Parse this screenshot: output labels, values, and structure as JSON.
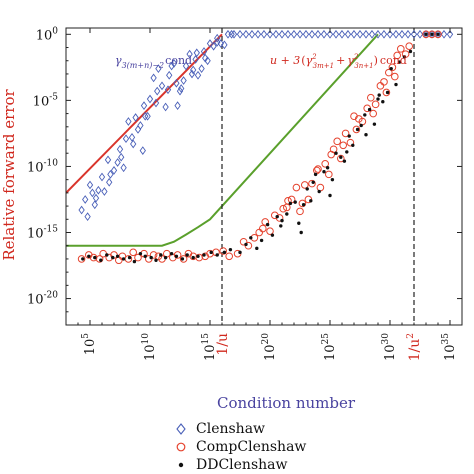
{
  "chart_data": {
    "type": "scatter",
    "xlabel": "Condition number",
    "ylabel": "Relative forward error",
    "xscale": "log",
    "yscale": "log",
    "xlim": [
      1000.0,
      1e+36
    ],
    "ylim": [
      1e-22,
      3
    ],
    "y_ticks": [
      1,
      1e-05,
      1e-10,
      1e-15,
      1e-20
    ],
    "y_tick_labels": [
      {
        "base": "10",
        "exp": "0"
      },
      {
        "base": "10",
        "exp": "-5"
      },
      {
        "base": "10",
        "exp": "-10"
      },
      {
        "base": "10",
        "exp": "-15"
      },
      {
        "base": "10",
        "exp": "-20"
      }
    ],
    "x_ticks": [
      100000.0,
      10000000000.0,
      1000000000000000.0,
      1e+20,
      1e+25,
      1e+30,
      1e+35
    ],
    "x_tick_labels": [
      {
        "base": "10",
        "exp": "5"
      },
      {
        "base": "10",
        "exp": "10"
      },
      {
        "base": "10",
        "exp": "15"
      },
      {
        "base": "10",
        "exp": "20"
      },
      {
        "base": "10",
        "exp": "25"
      },
      {
        "base": "10",
        "exp": "30"
      },
      {
        "base": "10",
        "exp": "35"
      }
    ],
    "special_ticks": [
      {
        "x": 1e+16,
        "label": "1/u",
        "color": "#d0281e"
      },
      {
        "x": 1e+32,
        "label": "1/u",
        "sup": "2",
        "color": "#d0281e"
      }
    ],
    "vlines": [
      1e+16,
      1e+32
    ],
    "bound_lines": [
      {
        "name": "γ3(m+n)−2 cond",
        "color": "#d9342b",
        "points": [
          [
            1000.0,
            1e-12
          ],
          [
            1e+16,
            1
          ]
        ]
      },
      {
        "name": "u + 3(γ²3m+1 + γ²3n+1) cond",
        "color": "#5aa02c",
        "points": [
          [
            1000.0,
            1e-16
          ],
          [
            100000000000.0,
            1e-16
          ],
          [
            1000000000000.0,
            2e-16
          ],
          [
            10000000000000.0,
            7e-16
          ],
          [
            100000000000000.0,
            2.5e-15
          ],
          [
            1000000000000000.0,
            1e-14
          ],
          [
            1e+29,
            1
          ]
        ]
      }
    ],
    "annotations": [
      {
        "text": "γ",
        "sub": "3(m+n)−2",
        "after": "cond",
        "color": "#4a44a0"
      },
      {
        "text": "u + 3",
        "color": "#d0281e"
      }
    ],
    "legend_position": "bottom",
    "series": [
      {
        "name": "Clenshaw",
        "marker": "diamond",
        "color": "#4a60b8",
        "x": [
          4.3,
          4.6,
          4.8,
          5.0,
          5.2,
          5.5,
          5.7,
          6.0,
          6.2,
          6.5,
          6.7,
          7.0,
          7.3,
          7.5,
          7.8,
          8.0,
          8.2,
          8.5,
          8.8,
          9.0,
          9.2,
          9.5,
          9.8,
          10.0,
          10.3,
          10.5,
          10.7,
          11.0,
          11.3,
          11.5,
          11.8,
          12.0,
          12.3,
          12.5,
          12.8,
          13.0,
          13.3,
          13.5,
          13.8,
          14.0,
          14.3,
          14.5,
          14.8,
          15.0,
          15.3,
          15.6,
          15.9,
          16.2,
          16.5,
          16.8,
          17.0,
          17.5,
          18.0,
          18.5,
          19.0,
          19.5,
          20.0,
          20.5,
          21.0,
          21.5,
          22.0,
          22.5,
          23.0,
          23.5,
          24.0,
          24.5,
          25.0,
          25.5,
          26.0,
          26.5,
          27.0,
          27.5,
          28.0,
          28.5,
          29.0,
          29.5,
          30.0,
          30.5,
          31.0,
          31.5,
          32.0,
          32.5,
          33.0,
          33.5,
          34.0,
          34.5,
          35.0,
          5.4,
          6.6,
          7.6,
          8.6,
          9.6,
          10.6,
          11.6,
          12.6,
          13.6,
          14.6,
          15.6,
          9.4,
          12.2,
          13.9
        ],
        "y": [
          -13.3,
          -12.5,
          -13.8,
          -11.4,
          -12.0,
          -12.4,
          -11.8,
          -10.8,
          -11.9,
          -9.5,
          -10.6,
          -10.3,
          -9.7,
          -8.7,
          -10.1,
          -7.9,
          -6.6,
          -7.8,
          -6.3,
          -7.2,
          -6.9,
          -5.4,
          -6.2,
          -4.9,
          -3.3,
          -5.2,
          -2.6,
          -3.9,
          -5.5,
          -4.2,
          -2.4,
          -2.2,
          -5.4,
          -4.3,
          -3.5,
          -2.4,
          -1.5,
          -3.0,
          -1.9,
          -3.1,
          -2.6,
          -1.3,
          -2.0,
          -0.7,
          -0.9,
          -0.6,
          -0.7,
          -0.8,
          0,
          0,
          0,
          0,
          0,
          0,
          0,
          0,
          0,
          0,
          0,
          0,
          0,
          0,
          0,
          0,
          0,
          0,
          0,
          0,
          0,
          0,
          0,
          0,
          0,
          0,
          0,
          0,
          0,
          0,
          0,
          0,
          0,
          0,
          0,
          0,
          0,
          0,
          0,
          -12.9,
          -11.2,
          -9.3,
          -8.3,
          -6.2,
          -4.3,
          -3.1,
          -4.1,
          -2.7,
          -1.8,
          -0.3,
          -8.8,
          -3.7,
          -1.4
        ]
      },
      {
        "name": "CompClenshaw",
        "marker": "circle",
        "color": "#e5432e",
        "x": [
          4.3,
          4.9,
          5.3,
          5.8,
          6.1,
          6.6,
          7.0,
          7.4,
          7.7,
          8.2,
          8.6,
          9.0,
          9.5,
          9.9,
          10.3,
          10.7,
          11.0,
          11.4,
          11.9,
          12.3,
          12.8,
          13.2,
          13.6,
          14.1,
          14.6,
          15.0,
          15.5,
          16.1,
          16.6,
          17.3,
          17.8,
          18.2,
          18.7,
          19.1,
          19.6,
          20.0,
          20.4,
          20.8,
          21.1,
          21.5,
          21.8,
          22.2,
          22.5,
          22.9,
          23.2,
          23.5,
          23.9,
          24.2,
          24.6,
          24.9,
          25.3,
          25.6,
          25.9,
          26.3,
          26.7,
          27.0,
          27.4,
          27.7,
          28.1,
          28.4,
          28.8,
          29.2,
          29.5,
          29.9,
          30.2,
          30.6,
          30.9,
          31.3,
          31.6,
          33.0,
          33.5,
          34.0,
          19.4,
          21.4,
          22.7,
          24.0,
          25.1,
          26.1,
          27.2,
          28.6,
          29.7,
          30.4
        ],
        "y": [
          -17.0,
          -16.7,
          -16.9,
          -17.0,
          -16.6,
          -16.9,
          -16.7,
          -17.1,
          -16.8,
          -17.0,
          -16.5,
          -16.9,
          -16.6,
          -17.0,
          -16.7,
          -16.8,
          -17.0,
          -16.6,
          -16.9,
          -16.7,
          -17.0,
          -16.6,
          -16.8,
          -16.9,
          -16.8,
          -16.6,
          -16.5,
          -16.4,
          -16.8,
          -16.6,
          -15.7,
          -16.0,
          -15.4,
          -15.0,
          -14.2,
          -14.9,
          -13.7,
          -13.9,
          -13.2,
          -12.6,
          -12.5,
          -11.6,
          -13.4,
          -11.4,
          -12.5,
          -11.3,
          -10.3,
          -11.6,
          -9.8,
          -10.6,
          -8.7,
          -8.1,
          -9.4,
          -7.5,
          -8.2,
          -6.2,
          -6.4,
          -6.6,
          -5.6,
          -4.8,
          -5.3,
          -3.9,
          -3.6,
          -2.9,
          -2.5,
          -1.6,
          -1.1,
          -1.5,
          -0.9,
          0,
          0,
          0,
          -14.7,
          -13.1,
          -12.8,
          -10.2,
          -9.1,
          -8.4,
          -7.2,
          -6.0,
          -4.4,
          -3.2
        ],
        "y_is_log10": true
      },
      {
        "name": "DDClenshaw",
        "marker": "dot",
        "color": "#111111",
        "x": [
          4.4,
          4.9,
          5.4,
          5.9,
          6.4,
          6.9,
          7.3,
          7.8,
          8.3,
          8.7,
          9.2,
          9.6,
          10.1,
          10.5,
          10.9,
          11.3,
          11.8,
          12.2,
          12.7,
          13.1,
          13.6,
          14.0,
          14.5,
          15.1,
          15.6,
          16.2,
          16.7,
          17.5,
          18.0,
          18.4,
          18.9,
          19.3,
          19.8,
          20.2,
          20.6,
          21.0,
          21.4,
          21.7,
          22.1,
          22.4,
          22.8,
          23.1,
          23.4,
          23.8,
          24.1,
          24.5,
          24.8,
          25.2,
          25.5,
          25.9,
          26.2,
          26.6,
          26.9,
          27.3,
          27.6,
          28.0,
          28.3,
          28.7,
          29.1,
          29.4,
          29.8,
          30.1,
          30.5,
          30.8,
          31.2,
          31.7,
          33.0,
          33.5,
          34.0,
          20.9,
          22.6,
          23.6,
          25.0,
          26.4,
          27.9,
          29.0
        ],
        "y": [
          -17.0,
          -16.8,
          -16.9,
          -17.1,
          -16.7,
          -16.9,
          -16.8,
          -17.0,
          -16.9,
          -17.2,
          -16.6,
          -16.8,
          -16.9,
          -17.1,
          -16.7,
          -16.9,
          -16.6,
          -16.8,
          -17.0,
          -16.7,
          -16.9,
          -16.8,
          -16.7,
          -16.5,
          -16.7,
          -16.5,
          -16.3,
          -16.5,
          -15.9,
          -15.4,
          -16.2,
          -15.6,
          -14.4,
          -15.2,
          -13.8,
          -14.1,
          -13.6,
          -12.8,
          -12.7,
          -14.3,
          -12.9,
          -11.7,
          -12.6,
          -10.6,
          -11.9,
          -10.4,
          -10.1,
          -11.0,
          -9.0,
          -9.3,
          -9.6,
          -7.7,
          -8.4,
          -7.2,
          -6.9,
          -7.6,
          -5.7,
          -6.8,
          -4.6,
          -5.1,
          -4.4,
          -2.6,
          -3.8,
          -2.1,
          -1.7,
          -1.3,
          0,
          0,
          0,
          -14.5,
          -15.0,
          -11.2,
          -12.2,
          -8.9,
          -6.1,
          -4.9
        ]
      }
    ]
  },
  "legend_items": [
    {
      "label": "Clenshaw"
    },
    {
      "label": "CompClenshaw"
    },
    {
      "label": "DDClenshaw"
    }
  ],
  "annotation_left": {
    "gamma": "γ",
    "sub": "3(m+n)−2",
    "suffix": "cond"
  },
  "annotation_right": {
    "prefix": "u + 3",
    "gamma1": "γ",
    "sub1": "3m+1",
    "sup1": "2",
    "plus": "+",
    "gamma2": "γ",
    "sub2": "3n+1",
    "sup2": "2",
    "suffix": "cond"
  }
}
